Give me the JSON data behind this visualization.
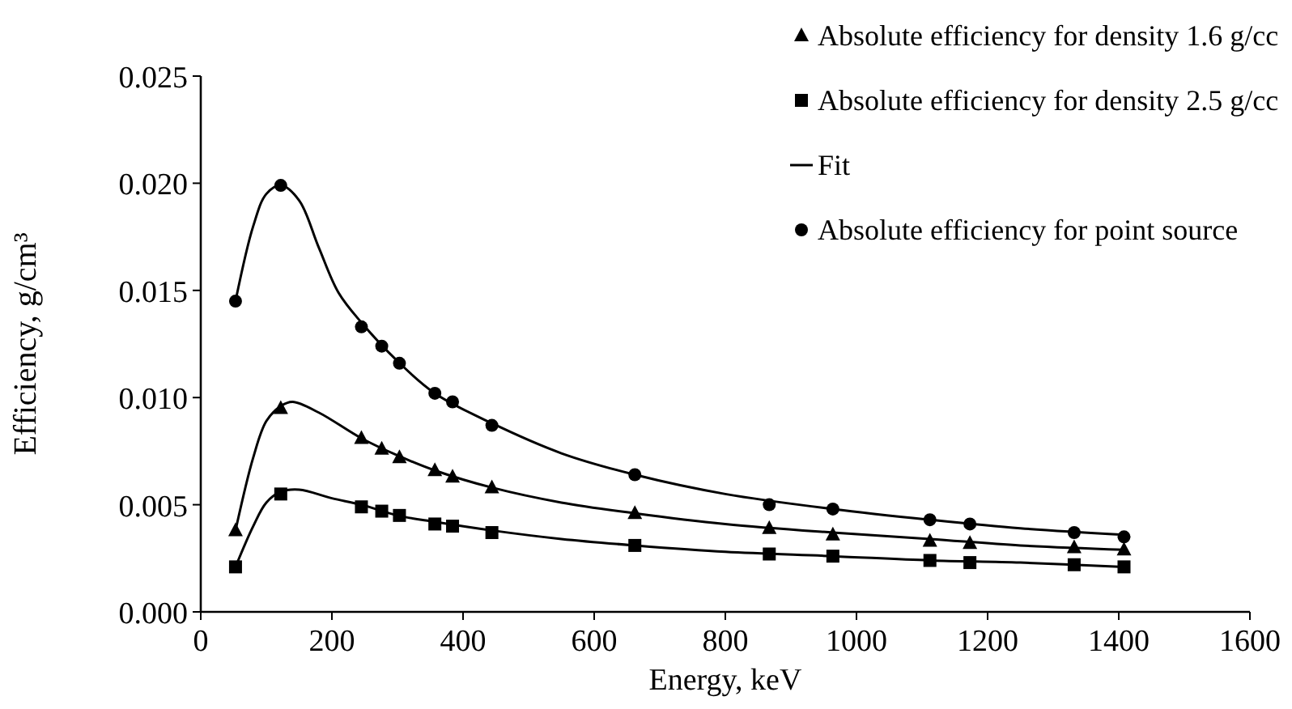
{
  "chart_data": {
    "type": "scatter",
    "xlabel": "Energy, keV",
    "ylabel": "Efficiency, g/cm³",
    "xlim": [
      0,
      1600
    ],
    "xticks": [
      0,
      200,
      400,
      600,
      800,
      1000,
      1200,
      1400,
      1600
    ],
    "ylim": [
      0,
      0.025
    ],
    "yticks": [
      {
        "value": 0,
        "label": "0.000"
      },
      {
        "value": 0.005,
        "label": "0.005"
      },
      {
        "value": 0.01,
        "label": "0.010"
      },
      {
        "value": 0.015,
        "label": "0.015"
      },
      {
        "value": 0.02,
        "label": "0.020"
      },
      {
        "value": 0.025,
        "label": "0.025"
      }
    ],
    "grid": false,
    "legend": "top right",
    "series": [
      {
        "name": "Absolute efficiency for density 1.6 g/cc",
        "type": "scatter",
        "marker": "triangle",
        "color": "#000000",
        "x": [
          53,
          122,
          245,
          276,
          303,
          357,
          384,
          444,
          662,
          867,
          964,
          1112,
          1173,
          1332,
          1408
        ],
        "values": [
          0.0038,
          0.0095,
          0.0081,
          0.0076,
          0.0072,
          0.0066,
          0.0063,
          0.0058,
          0.0046,
          0.0039,
          0.0036,
          0.0033,
          0.0032,
          0.003,
          0.0029
        ]
      },
      {
        "name": "Absolute efficiency for density 2.5 g/cc",
        "type": "scatter",
        "marker": "square",
        "color": "#000000",
        "x": [
          53,
          122,
          245,
          276,
          303,
          357,
          384,
          444,
          662,
          867,
          964,
          1112,
          1173,
          1332,
          1408
        ],
        "values": [
          0.0021,
          0.0055,
          0.0049,
          0.0047,
          0.0045,
          0.0041,
          0.004,
          0.0037,
          0.0031,
          0.0027,
          0.0026,
          0.0024,
          0.0023,
          0.0022,
          0.0021
        ]
      },
      {
        "name": "Fit",
        "type": "line",
        "marker": "none",
        "color": "#000000",
        "x": [
          53,
          80,
          100,
          122,
          140,
          180,
          245,
          300,
          357,
          444,
          550,
          662,
          800,
          964,
          1112,
          1250,
          1408
        ],
        "values": [
          0.0038,
          0.0072,
          0.0089,
          0.0096,
          0.0098,
          0.0093,
          0.0081,
          0.0073,
          0.0066,
          0.0058,
          0.0051,
          0.0046,
          0.0041,
          0.0037,
          0.0034,
          0.0031,
          0.0029
        ]
      },
      {
        "name": "Absolute efficiency for point source",
        "type": "scatter",
        "marker": "circle",
        "color": "#000000",
        "x": [
          53,
          122,
          245,
          276,
          303,
          357,
          384,
          444,
          662,
          867,
          964,
          1112,
          1173,
          1332,
          1408
        ],
        "values": [
          0.0145,
          0.0199,
          0.0133,
          0.0124,
          0.0116,
          0.0102,
          0.0098,
          0.0087,
          0.0064,
          0.005,
          0.0048,
          0.0043,
          0.0041,
          0.0037,
          0.0035
        ]
      },
      {
        "type": "line",
        "marker": "none",
        "color": "#000000",
        "x": [
          53,
          80,
          100,
          122,
          150,
          180,
          210,
          245,
          300,
          357,
          444,
          550,
          662,
          800,
          964,
          1112,
          1250,
          1408
        ],
        "values": [
          0.0145,
          0.018,
          0.0195,
          0.0199,
          0.0192,
          0.017,
          0.0149,
          0.0135,
          0.0117,
          0.0102,
          0.0088,
          0.0074,
          0.0064,
          0.0055,
          0.0048,
          0.0043,
          0.0039,
          0.0036
        ]
      },
      {
        "type": "line",
        "marker": "none",
        "color": "#000000",
        "x": [
          53,
          80,
          100,
          122,
          150,
          200,
          245,
          300,
          357,
          444,
          550,
          662,
          800,
          964,
          1112,
          1250,
          1408
        ],
        "values": [
          0.0021,
          0.004,
          0.0051,
          0.0056,
          0.0057,
          0.0053,
          0.005,
          0.0045,
          0.0042,
          0.0038,
          0.0034,
          0.0031,
          0.0028,
          0.0026,
          0.0024,
          0.0023,
          0.0021
        ]
      }
    ]
  }
}
